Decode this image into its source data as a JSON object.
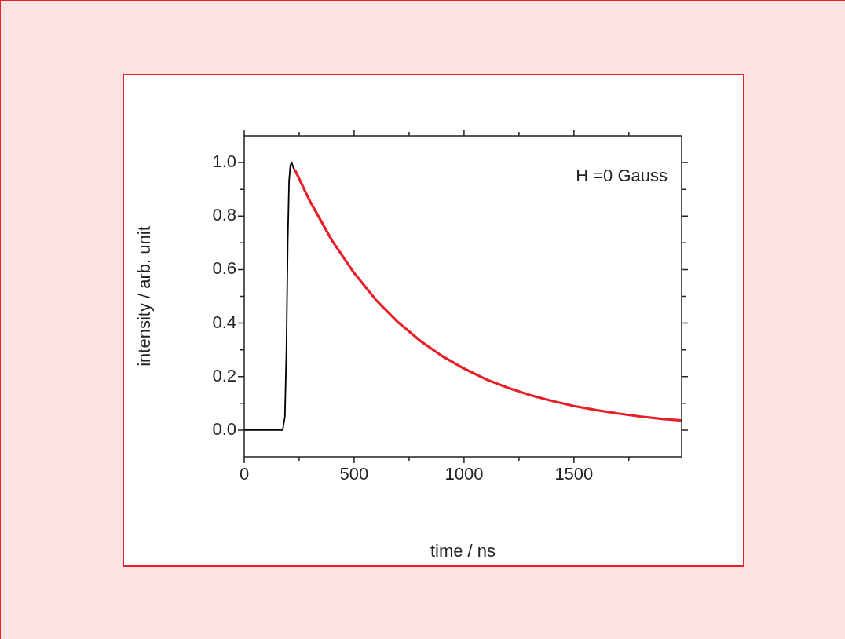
{
  "chart_data": {
    "type": "line",
    "xlabel": "time / ns",
    "ylabel": "intensity / arb. unit",
    "annotations": [
      "H =0 Gauss"
    ],
    "xlim": [
      0,
      1990
    ],
    "ylim": [
      -0.1,
      1.1
    ],
    "xticks": [
      0,
      {
        "value": 250,
        "label": null
      },
      500,
      {
        "value": 750,
        "label": null
      },
      1000,
      {
        "value": 1250,
        "label": null
      },
      1500,
      {
        "value": 1750,
        "label": null
      }
    ],
    "yticks": [
      {
        "value": 0,
        "label": "0.0"
      },
      {
        "value": 0.1,
        "label": null
      },
      {
        "value": 0.2,
        "label": "0.2"
      },
      {
        "value": 0.3,
        "label": null
      },
      {
        "value": 0.4,
        "label": "0.4"
      },
      {
        "value": 0.5,
        "label": null
      },
      {
        "value": 0.6,
        "label": "0.6"
      },
      {
        "value": 0.7,
        "label": null
      },
      {
        "value": 0.8,
        "label": "0.8"
      },
      {
        "value": 0.9,
        "label": null
      },
      {
        "value": 1,
        "label": "1.0"
      }
    ],
    "grid": false,
    "legend": false,
    "marker": "none",
    "line_style": "solid",
    "series": [
      {
        "color": "#000000",
        "x": [
          0,
          100,
          175,
          185,
          192,
          198,
          204,
          210,
          216,
          224,
          232
        ],
        "values": [
          0,
          0,
          0,
          0.05,
          0.3,
          0.7,
          0.93,
          0.99,
          1.0,
          0.98,
          0.97
        ]
      },
      {
        "color": "#e8202a",
        "x": [
          232,
          300,
          400,
          500,
          600,
          700,
          800,
          900,
          1000,
          1100,
          1200,
          1300,
          1400,
          1500,
          1600,
          1700,
          1800,
          1900,
          1990
        ],
        "values": [
          0.97,
          0.854,
          0.708,
          0.587,
          0.486,
          0.403,
          0.334,
          0.277,
          0.23,
          0.19,
          0.158,
          0.131,
          0.109,
          0.09,
          0.075,
          0.062,
          0.051,
          0.042,
          0.036
        ]
      }
    ]
  }
}
